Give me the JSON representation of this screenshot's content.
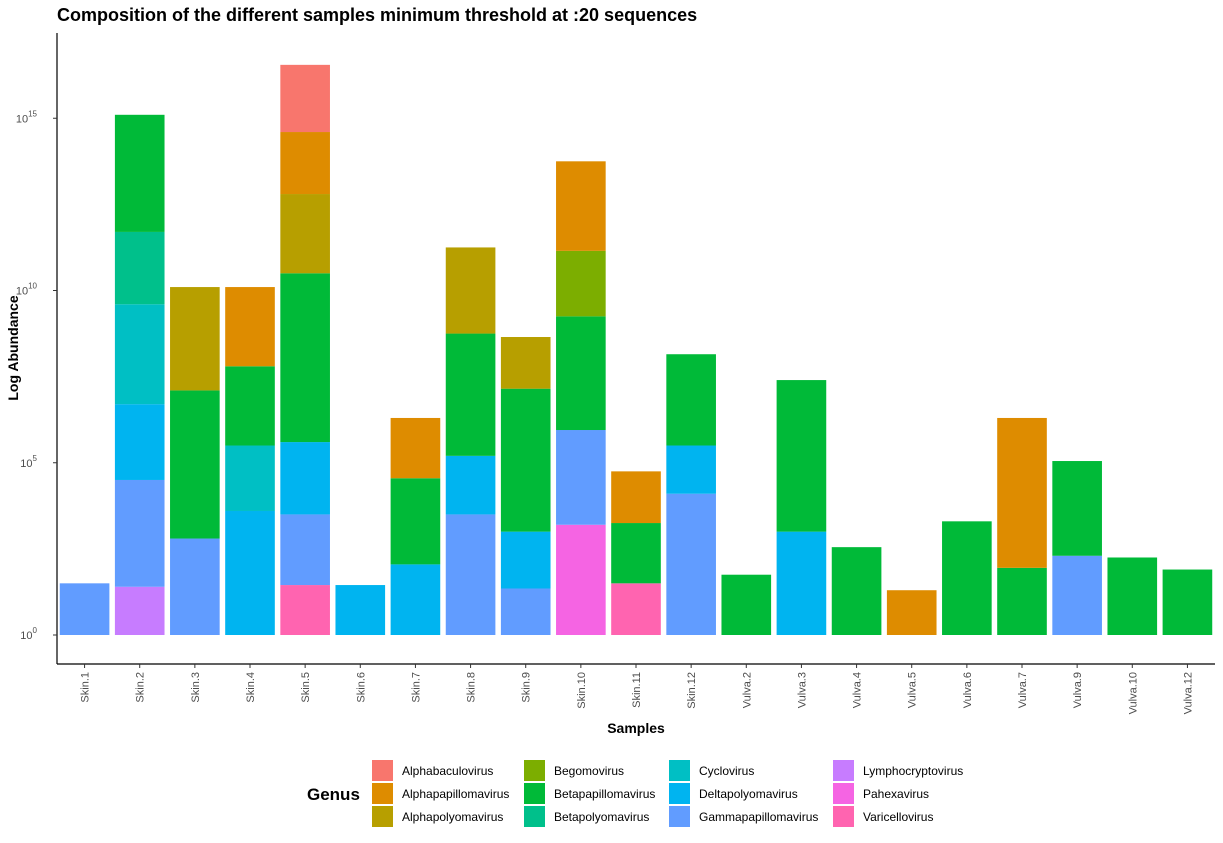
{
  "chart_data": {
    "type": "bar",
    "stacked": true,
    "title": "Composition of the different samples minimum threshold at :20 sequences",
    "xlabel": "Samples",
    "ylabel": "Log Abundance",
    "y_scale": "log10",
    "ylim_log10": [
      -0.05,
      15.8
    ],
    "y_ticks": [
      {
        "base": "10",
        "exp": "0",
        "log10": 0
      },
      {
        "base": "10",
        "exp": "5",
        "log10": 5
      },
      {
        "base": "10",
        "exp": "10",
        "log10": 10
      },
      {
        "base": "10",
        "exp": "15",
        "log10": 15
      }
    ],
    "grid": false,
    "legend": {
      "title": "Genus",
      "placement": "bottom",
      "entries": [
        {
          "name": "Alphabaculovirus",
          "color": "#F8766D"
        },
        {
          "name": "Alphapapillomavirus",
          "color": "#DE8C00"
        },
        {
          "name": "Alphapolyomavirus",
          "color": "#B79F00"
        },
        {
          "name": "Begomovirus",
          "color": "#7CAE00"
        },
        {
          "name": "Betapapillomavirus",
          "color": "#00BA38"
        },
        {
          "name": "Betapolyomavirus",
          "color": "#00C08B"
        },
        {
          "name": "Cyclovirus",
          "color": "#00BFC4"
        },
        {
          "name": "Deltapolyomavirus",
          "color": "#00B4F0"
        },
        {
          "name": "Gammapapillomavirus",
          "color": "#619CFF"
        },
        {
          "name": "Lymphocryptovirus",
          "color": "#C77CFF"
        },
        {
          "name": "Pahexavirus",
          "color": "#F564E3"
        },
        {
          "name": "Varicellovirus",
          "color": "#FF64B0"
        }
      ]
    },
    "categories": [
      "Skin.1",
      "Skin.2",
      "Skin.3",
      "Skin.4",
      "Skin.5",
      "Skin.6",
      "Skin.7",
      "Skin.8",
      "Skin.9",
      "Skin.10",
      "Skin.11",
      "Skin.12",
      "Vulva.2",
      "Vulva.3",
      "Vulva.4",
      "Vulva.5",
      "Vulva.6",
      "Vulva.7",
      "Vulva.9",
      "Vulva.10",
      "Vulva.12"
    ],
    "stack_order": [
      "Varicellovirus",
      "Pahexavirus",
      "Lymphocryptovirus",
      "Gammapapillomavirus",
      "Deltapolyomavirus",
      "Cyclovirus",
      "Betapolyomavirus",
      "Betapapillomavirus",
      "Begomovirus",
      "Alphapolyomavirus",
      "Alphapapillomavirus",
      "Alphabaculovirus"
    ],
    "segments_log10_height": {
      "Skin.1": {
        "Gammapapillomavirus": 1.5
      },
      "Skin.2": {
        "Lymphocryptovirus": 1.4,
        "Gammapapillomavirus": 3.1,
        "Deltapolyomavirus": 2.2,
        "Cyclovirus": 2.9,
        "Betapolyomavirus": 2.1,
        "Betapapillomavirus": 3.4
      },
      "Skin.3": {
        "Gammapapillomavirus": 2.8,
        "Betapapillomavirus": 4.3,
        "Alphapolyomavirus": 3.0
      },
      "Skin.4": {
        "Deltapolyomavirus": 3.6,
        "Cyclovirus": 1.9,
        "Betapapillomavirus": 2.3,
        "Alphapapillomavirus": 2.3
      },
      "Skin.5": {
        "Varicellovirus": 1.45,
        "Gammapapillomavirus": 2.05,
        "Deltapolyomavirus": 2.1,
        "Betapapillomavirus": 4.9,
        "Alphapolyomavirus": 2.3,
        "Alphapapillomavirus": 1.8,
        "Alphabaculovirus": 1.95
      },
      "Skin.6": {
        "Deltapolyomavirus": 1.45
      },
      "Skin.7": {
        "Deltapolyomavirus": 2.05,
        "Betapapillomavirus": 2.5,
        "Alphapapillomavirus": 1.75
      },
      "Skin.8": {
        "Gammapapillomavirus": 3.5,
        "Deltapolyomavirus": 1.7,
        "Betapapillomavirus": 3.55,
        "Alphapolyomavirus": 2.5
      },
      "Skin.9": {
        "Gammapapillomavirus": 1.35,
        "Deltapolyomavirus": 1.65,
        "Betapapillomavirus": 4.15,
        "Alphapolyomavirus": 1.5
      },
      "Skin.10": {
        "Pahexavirus": 3.2,
        "Gammapapillomavirus": 2.75,
        "Betapapillomavirus": 3.3,
        "Begomovirus": 1.9,
        "Alphapapillomavirus": 2.6
      },
      "Skin.11": {
        "Varicellovirus": 1.5,
        "Betapapillomavirus": 1.75,
        "Alphapapillomavirus": 1.5
      },
      "Skin.12": {
        "Gammapapillomavirus": 4.1,
        "Deltapolyomavirus": 1.4,
        "Betapapillomavirus": 2.65
      },
      "Vulva.2": {
        "Betapapillomavirus": 1.75
      },
      "Vulva.3": {
        "Deltapolyomavirus": 3.0,
        "Betapapillomavirus": 4.4
      },
      "Vulva.4": {
        "Betapapillomavirus": 2.55
      },
      "Vulva.5": {
        "Alphapapillomavirus": 1.3
      },
      "Vulva.6": {
        "Betapapillomavirus": 3.3
      },
      "Vulva.7": {
        "Betapapillomavirus": 1.95,
        "Alphapapillomavirus": 4.35
      },
      "Vulva.9": {
        "Gammapapillomavirus": 2.3,
        "Betapapillomavirus": 2.75
      },
      "Vulva.10": {
        "Betapapillomavirus": 2.25
      },
      "Vulva.12": {
        "Betapapillomavirus": 1.9
      }
    }
  }
}
